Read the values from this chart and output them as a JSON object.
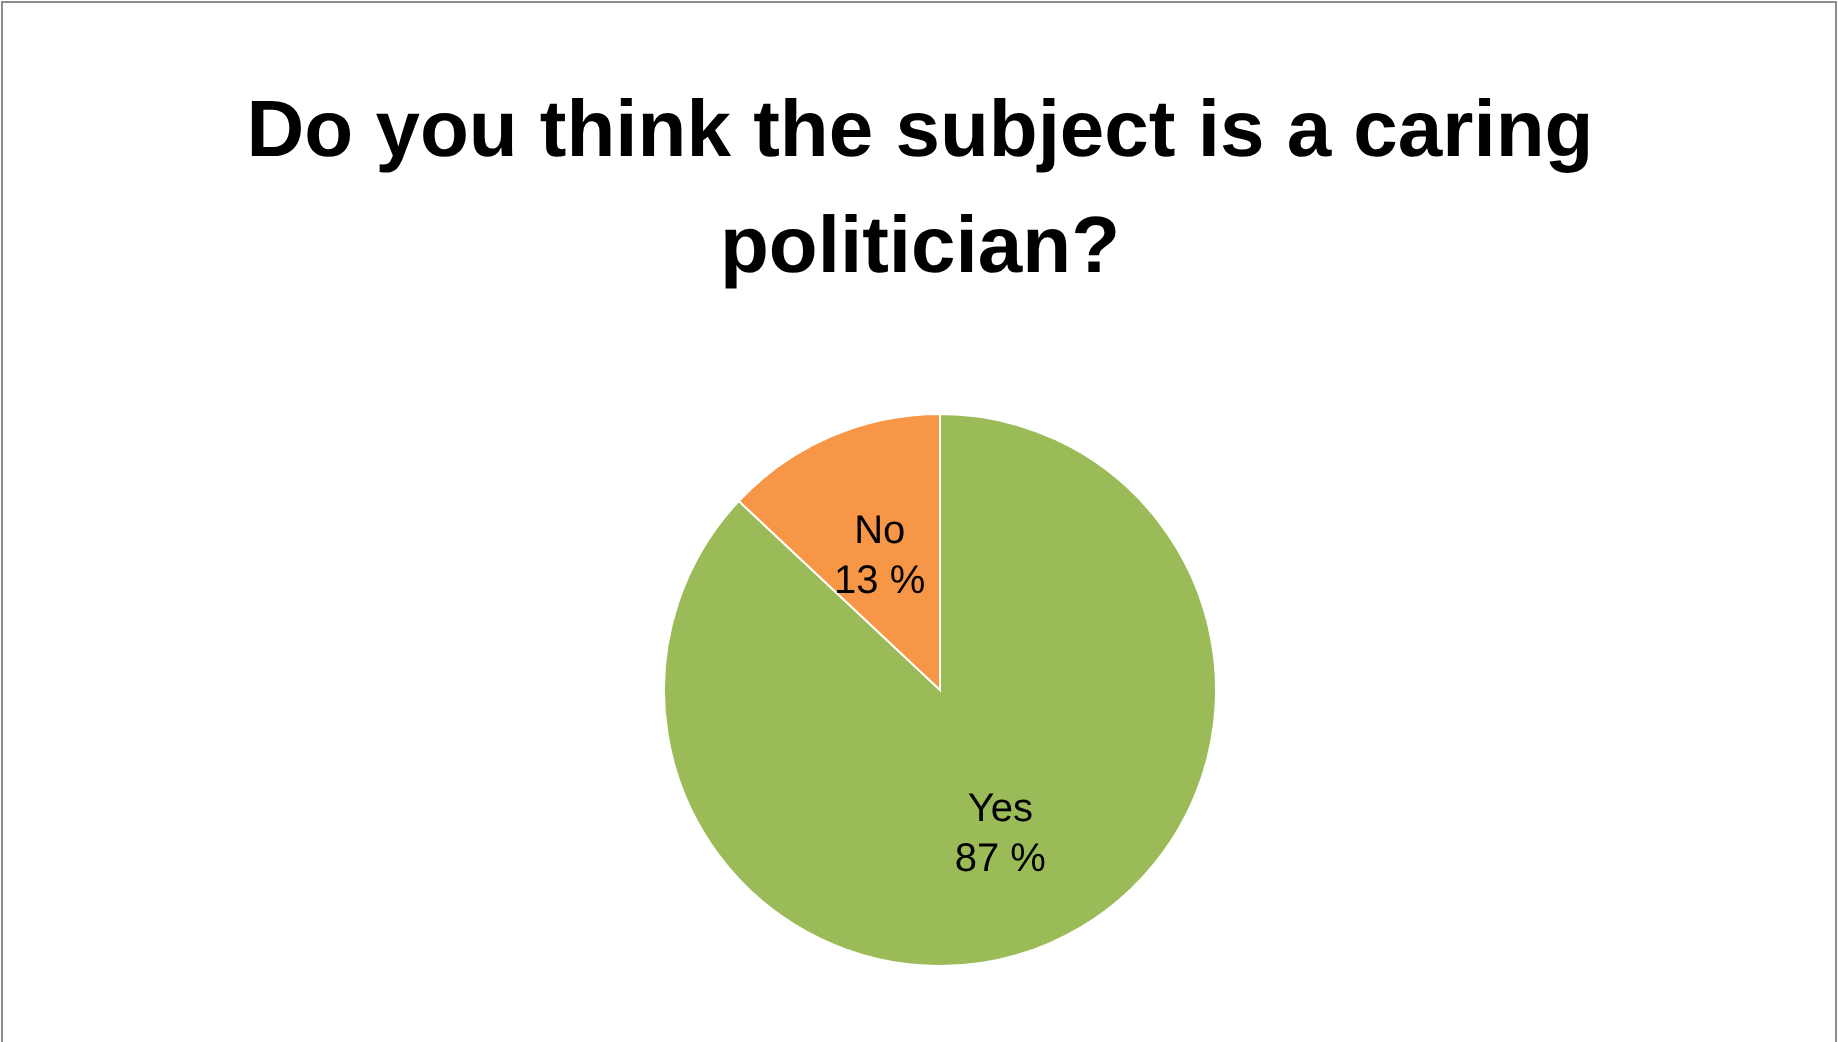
{
  "chart_data": {
    "type": "pie",
    "title": "Do you think the subject is a caring politician?",
    "categories": [
      "Yes",
      "No"
    ],
    "values": [
      87,
      13
    ],
    "colors": [
      "#9bbb59",
      "#f79646"
    ],
    "value_labels": [
      "87 %",
      "13 %"
    ],
    "legend": false
  }
}
